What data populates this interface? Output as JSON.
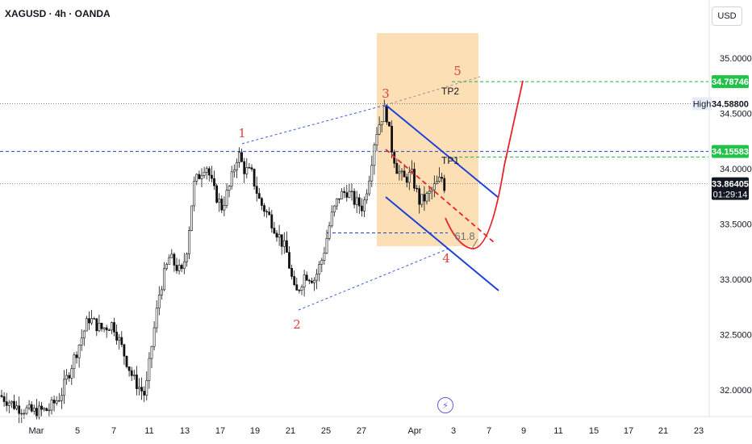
{
  "header": {
    "title": "XAGUSD · 4h · OANDA",
    "currency_button": "USD"
  },
  "colors": {
    "bull": "#0d0d0d",
    "bear": "#0d0d0d",
    "green": "#1fb53e",
    "blue_line": "#1e40d8",
    "red": "#e8232a",
    "box": "#fbd9a8",
    "grid_price": "#131722"
  },
  "chart_data": {
    "type": "candlestick",
    "title": "XAGUSD · 4h · OANDA",
    "ylim": [
      31.8,
      35.4
    ],
    "x_ticks": [
      "Mar",
      "5",
      "7",
      "11",
      "13",
      "17",
      "19",
      "21",
      "25",
      "27",
      "Apr",
      "3",
      "7",
      "9",
      "11",
      "15",
      "17",
      "21",
      "23"
    ],
    "y_ticks": [
      "35.00000",
      "34.50000",
      "34.00000",
      "33.50000",
      "33.00000",
      "32.50000",
      "32.00000"
    ],
    "y_tick_values": [
      35.0,
      34.5,
      34.0,
      33.5,
      33.0,
      32.5,
      32.0
    ],
    "price_tags": [
      {
        "label": "34.78746",
        "value": 34.78746,
        "style": "green"
      },
      {
        "label": "34.58800",
        "value": 34.588,
        "style": "white",
        "tag": "High"
      },
      {
        "label": "34.15583",
        "value": 34.15583,
        "style": "green"
      },
      {
        "label": "33.86405",
        "value": 33.86405,
        "style": "black",
        "sub": "01:29:14"
      }
    ],
    "horizontal_lines": [
      {
        "value": 34.78746,
        "style": "green-dashed"
      },
      {
        "value": 34.588,
        "style": "gray-dotted"
      },
      {
        "value": 34.15583,
        "style": "blue-dashed"
      },
      {
        "value": 34.105,
        "style": "green-dashed"
      },
      {
        "value": 33.86405,
        "style": "gray-dotted"
      },
      {
        "value": 33.42,
        "style": "blue-dashed"
      }
    ],
    "wave_labels": [
      {
        "text": "1",
        "color": "red"
      },
      {
        "text": "2",
        "color": "red"
      },
      {
        "text": "3",
        "color": "red"
      },
      {
        "text": "4",
        "color": "red"
      },
      {
        "text": "5",
        "color": "red"
      }
    ],
    "annotations": [
      {
        "text": "TP2"
      },
      {
        "text": "TP1"
      },
      {
        "text": "61.8"
      }
    ],
    "high_label": "High"
  }
}
